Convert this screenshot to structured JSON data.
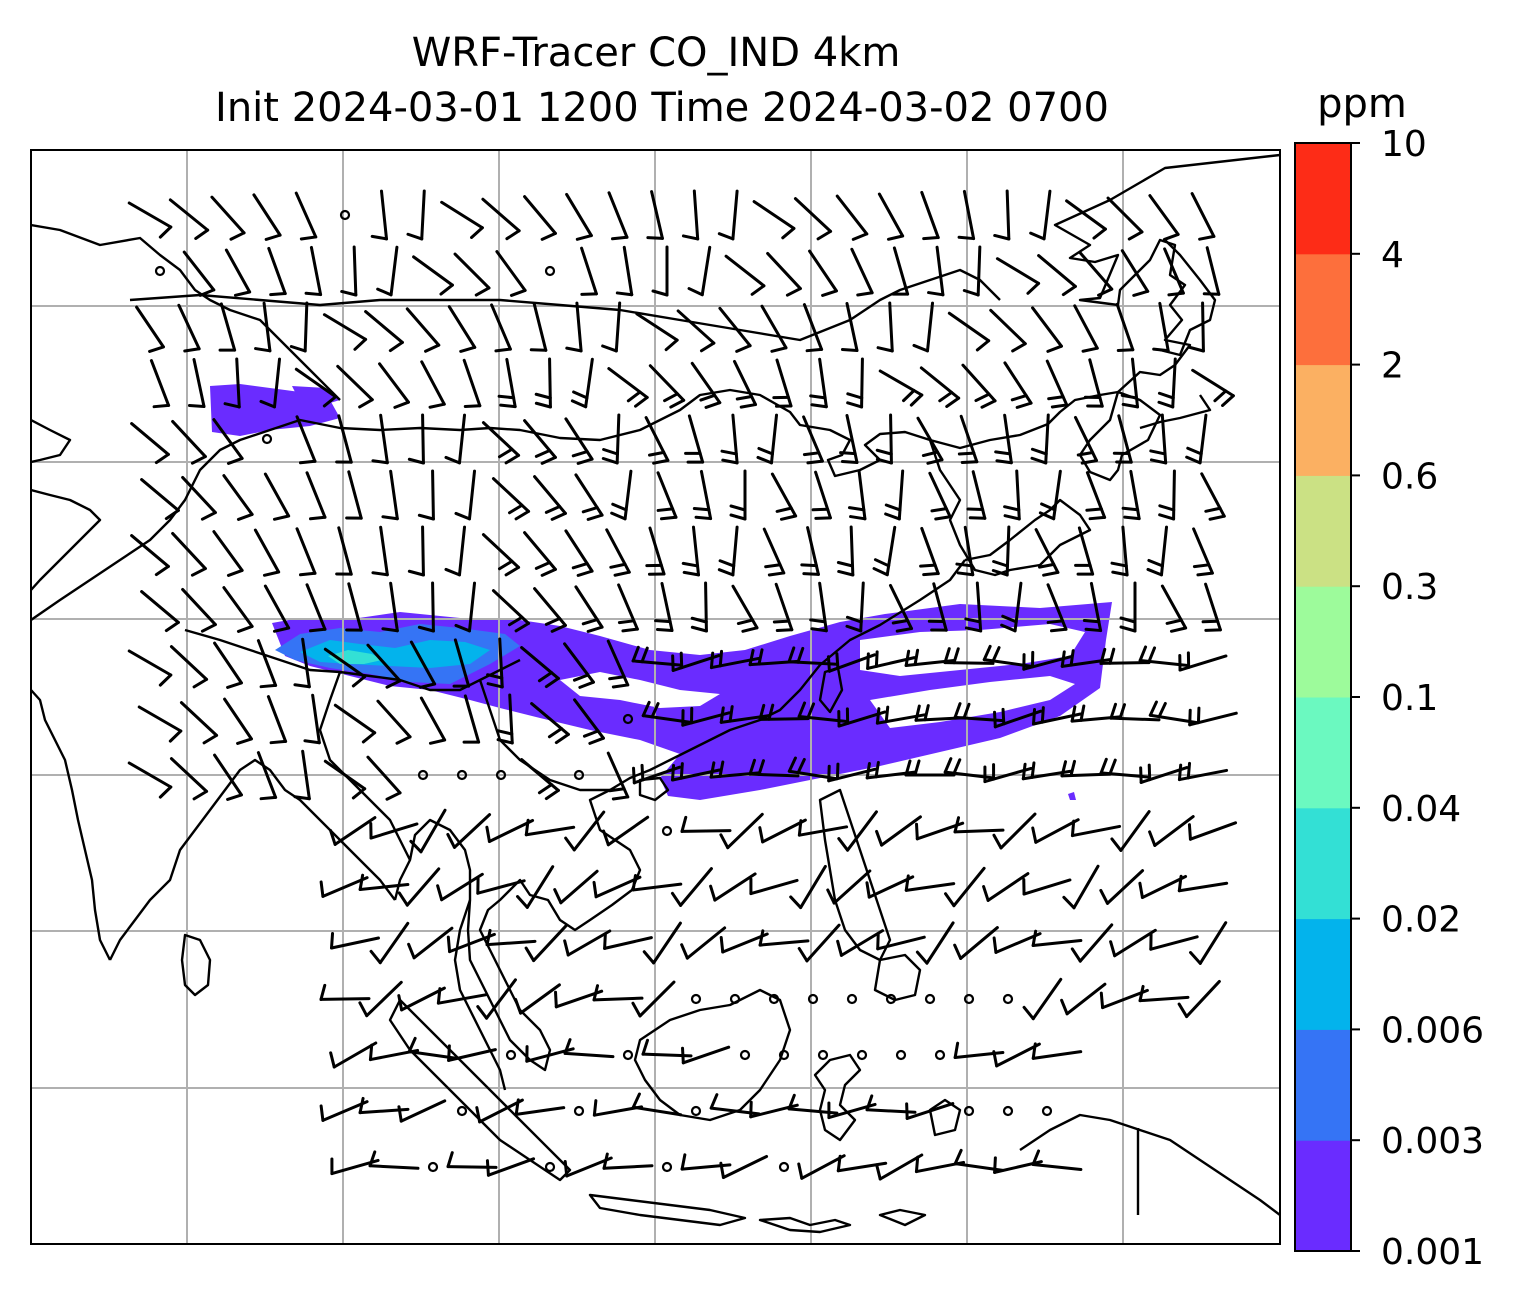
{
  "title": {
    "line1": "WRF-Tracer CO_IND 4km",
    "line2": "Init 2024-03-01 1200 Time 2024-03-02 0700"
  },
  "colorbar": {
    "unit_label": "ppm",
    "levels": [
      "0.001",
      "0.003",
      "0.006",
      "0.02",
      "0.04",
      "0.1",
      "0.3",
      "0.6",
      "2",
      "4",
      "10"
    ],
    "colors": [
      "#6a2cff",
      "#3574f5",
      "#03b3ec",
      "#33e0d5",
      "#6bf9c0",
      "#9dfb9b",
      "#cbe184",
      "#fbb062",
      "#fd6f3c",
      "#fd2c17"
    ]
  },
  "map": {
    "grid_color": "#b0b0b0",
    "coastline_color": "#000000",
    "plume_colors": {
      "low": "#6a2cff",
      "mid": "#3574f5",
      "high": "#03b3ec",
      "peak": "#33e0d5"
    }
  }
}
